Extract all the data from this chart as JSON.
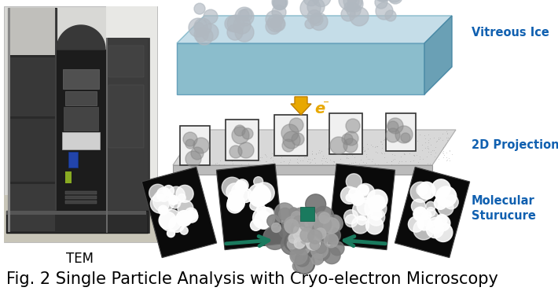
{
  "title": "Fig. 2 Single Particle Analysis with Cryo-electron Microscopy",
  "title_fontsize": 15,
  "title_color": "#000000",
  "title_fontweight": "normal",
  "background_color": "#ffffff",
  "label_vitreous_ice": "Vitreous Ice",
  "label_2d_projection": "2D Projection",
  "label_molecular_structure": "Molecular\nSturucure",
  "label_tem": "TEM",
  "label_color_blue": "#1060b0",
  "label_fontsize": 10.5,
  "label_fontweight": "bold",
  "arrow_color": "#e8a000",
  "ice_box_face_top": "#c0dde5",
  "ice_box_face_front": "#8bbdcc",
  "ice_box_face_right": "#6aa0b5",
  "proj_face_top": "#d0d0d0",
  "proj_face_front": "#b8b8b8",
  "teal_arrow_color": "#1a7a5e",
  "fig_width": 7.1,
  "fig_height": 3.7
}
